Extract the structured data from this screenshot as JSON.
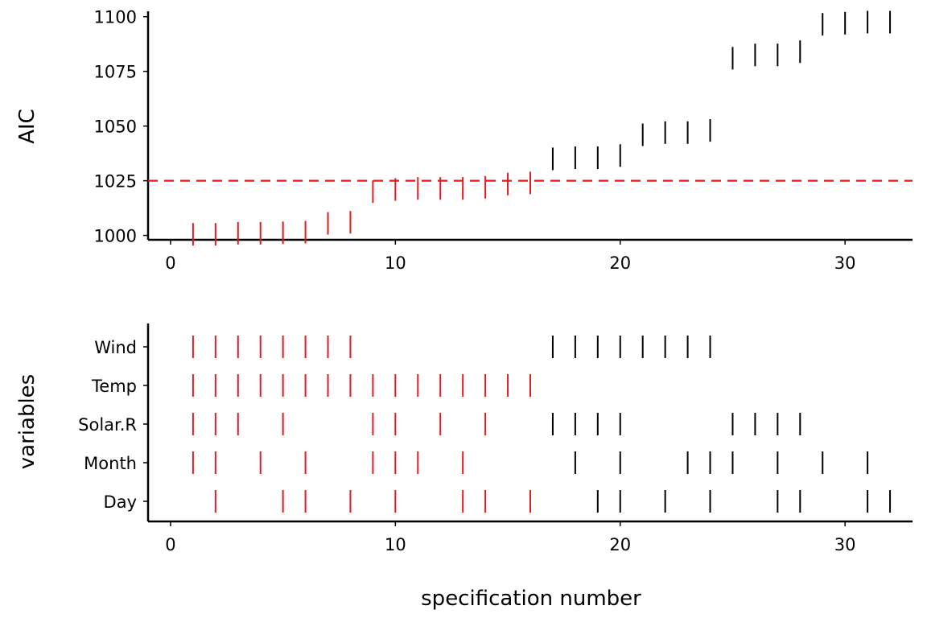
{
  "chart_data": [
    {
      "type": "scatter",
      "marker": "vertical-line",
      "xlabel": "",
      "ylabel": "AIC",
      "xlim": [
        -1,
        33
      ],
      "ylim": [
        998,
        1101
      ],
      "x_ticks": [
        0,
        10,
        20,
        30
      ],
      "y_ticks": [
        1000,
        1025,
        1050,
        1075,
        1100
      ],
      "reference_line": {
        "y": 1025,
        "style": "dashed",
        "color": "#e41a1c"
      },
      "highlight_color": "#e41a1c",
      "default_color": "#000000",
      "grid": false,
      "points": [
        {
          "x": 1,
          "y": 1000.5,
          "highlight": true
        },
        {
          "x": 2,
          "y": 1000.5,
          "highlight": true
        },
        {
          "x": 3,
          "y": 1001.0,
          "highlight": true
        },
        {
          "x": 4,
          "y": 1001.0,
          "highlight": true
        },
        {
          "x": 5,
          "y": 1001.2,
          "highlight": true
        },
        {
          "x": 6,
          "y": 1001.5,
          "highlight": true
        },
        {
          "x": 7,
          "y": 1005.5,
          "highlight": true
        },
        {
          "x": 8,
          "y": 1006.0,
          "highlight": true
        },
        {
          "x": 9,
          "y": 1020.0,
          "highlight": true
        },
        {
          "x": 10,
          "y": 1021.0,
          "highlight": true
        },
        {
          "x": 11,
          "y": 1021.5,
          "highlight": true
        },
        {
          "x": 12,
          "y": 1021.5,
          "highlight": true
        },
        {
          "x": 13,
          "y": 1021.5,
          "highlight": true
        },
        {
          "x": 14,
          "y": 1022.0,
          "highlight": true
        },
        {
          "x": 15,
          "y": 1023.5,
          "highlight": true
        },
        {
          "x": 16,
          "y": 1024.0,
          "highlight": true
        },
        {
          "x": 17,
          "y": 1035.0,
          "highlight": false
        },
        {
          "x": 18,
          "y": 1035.5,
          "highlight": false
        },
        {
          "x": 19,
          "y": 1035.5,
          "highlight": false
        },
        {
          "x": 20,
          "y": 1036.5,
          "highlight": false
        },
        {
          "x": 21,
          "y": 1046.0,
          "highlight": false
        },
        {
          "x": 22,
          "y": 1047.0,
          "highlight": false
        },
        {
          "x": 23,
          "y": 1047.0,
          "highlight": false
        },
        {
          "x": 24,
          "y": 1048.0,
          "highlight": false
        },
        {
          "x": 25,
          "y": 1081.0,
          "highlight": false
        },
        {
          "x": 26,
          "y": 1082.5,
          "highlight": false
        },
        {
          "x": 27,
          "y": 1082.5,
          "highlight": false
        },
        {
          "x": 28,
          "y": 1084.0,
          "highlight": false
        },
        {
          "x": 29,
          "y": 1096.5,
          "highlight": false
        },
        {
          "x": 30,
          "y": 1097.0,
          "highlight": false
        },
        {
          "x": 31,
          "y": 1097.5,
          "highlight": false
        },
        {
          "x": 32,
          "y": 1097.5,
          "highlight": false
        }
      ]
    },
    {
      "type": "scatter",
      "marker": "vertical-line",
      "xlabel": "specification number",
      "ylabel": "variables",
      "xlim": [
        -1,
        33
      ],
      "x_ticks": [
        0,
        10,
        20,
        30
      ],
      "categories": [
        "Wind",
        "Temp",
        "Solar.R",
        "Month",
        "Day"
      ],
      "highlight_color": "#e41a1c",
      "default_color": "#000000",
      "highlight_max_x": 16,
      "grid": false,
      "rows": [
        {
          "name": "Wind",
          "x": [
            1,
            2,
            3,
            4,
            5,
            6,
            7,
            8,
            17,
            18,
            19,
            20,
            21,
            22,
            23,
            24
          ]
        },
        {
          "name": "Temp",
          "x": [
            1,
            2,
            3,
            4,
            5,
            6,
            7,
            8,
            9,
            10,
            11,
            12,
            13,
            14,
            15,
            16
          ]
        },
        {
          "name": "Solar.R",
          "x": [
            1,
            2,
            3,
            5,
            9,
            10,
            12,
            14,
            17,
            18,
            19,
            20,
            25,
            26,
            27,
            28
          ]
        },
        {
          "name": "Month",
          "x": [
            1,
            2,
            4,
            6,
            9,
            10,
            11,
            13,
            18,
            20,
            23,
            24,
            25,
            27,
            29,
            31
          ]
        },
        {
          "name": "Day",
          "x": [
            2,
            5,
            6,
            8,
            10,
            13,
            14,
            16,
            19,
            20,
            22,
            24,
            27,
            28,
            31,
            32
          ]
        }
      ]
    }
  ]
}
